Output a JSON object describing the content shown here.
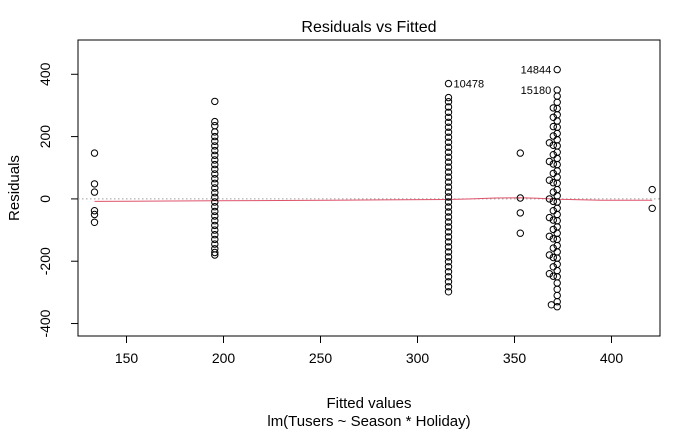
{
  "chart_data": {
    "type": "scatter",
    "title": "Residuals vs Fitted",
    "xlabel": "Fitted values",
    "subtitle": "lm(Tusers ~ Season * Holiday)",
    "ylabel": "Residuals",
    "xlim": [
      125,
      425
    ],
    "ylim": [
      -440,
      510
    ],
    "x_ticks": [
      150,
      200,
      250,
      300,
      350,
      400
    ],
    "y_ticks": [
      -400,
      -200,
      0,
      200,
      400
    ],
    "grid": false,
    "reference_line": 0,
    "colors": {
      "points": "#000000",
      "smooth": "#DF536B",
      "reference": "#9e9e9e",
      "frame": "#000000"
    },
    "points": [
      {
        "x": 133.5,
        "y": 147
      },
      {
        "x": 133.5,
        "y": 48
      },
      {
        "x": 133.5,
        "y": 22
      },
      {
        "x": 133.5,
        "y": -38
      },
      {
        "x": 133.5,
        "y": -50
      },
      {
        "x": 133.5,
        "y": -75
      },
      {
        "x": 195.5,
        "y": 313
      },
      {
        "x": 195.5,
        "y": 248
      },
      {
        "x": 195.5,
        "y": 235
      },
      {
        "x": 195.5,
        "y": 215
      },
      {
        "x": 195.5,
        "y": 200
      },
      {
        "x": 195.5,
        "y": 185
      },
      {
        "x": 195.5,
        "y": 170
      },
      {
        "x": 195.5,
        "y": 155
      },
      {
        "x": 195.5,
        "y": 140
      },
      {
        "x": 195.5,
        "y": 125
      },
      {
        "x": 195.5,
        "y": 110
      },
      {
        "x": 195.5,
        "y": 95
      },
      {
        "x": 195.5,
        "y": 80
      },
      {
        "x": 195.5,
        "y": 65
      },
      {
        "x": 195.5,
        "y": 50
      },
      {
        "x": 195.5,
        "y": 35
      },
      {
        "x": 195.5,
        "y": 20
      },
      {
        "x": 195.5,
        "y": 5
      },
      {
        "x": 195.5,
        "y": -10
      },
      {
        "x": 195.5,
        "y": -25
      },
      {
        "x": 195.5,
        "y": -40
      },
      {
        "x": 195.5,
        "y": -55
      },
      {
        "x": 195.5,
        "y": -70
      },
      {
        "x": 195.5,
        "y": -85
      },
      {
        "x": 195.5,
        "y": -100
      },
      {
        "x": 195.5,
        "y": -115
      },
      {
        "x": 195.5,
        "y": -130
      },
      {
        "x": 195.5,
        "y": -145
      },
      {
        "x": 195.5,
        "y": -160
      },
      {
        "x": 195.5,
        "y": -172
      },
      {
        "x": 195.5,
        "y": -180
      },
      {
        "x": 316,
        "y": 370,
        "label": "10478"
      },
      {
        "x": 316,
        "y": 325
      },
      {
        "x": 316,
        "y": 312
      },
      {
        "x": 316,
        "y": 295
      },
      {
        "x": 316,
        "y": 278
      },
      {
        "x": 316,
        "y": 262
      },
      {
        "x": 316,
        "y": 246
      },
      {
        "x": 316,
        "y": 230
      },
      {
        "x": 316,
        "y": 214
      },
      {
        "x": 316,
        "y": 198
      },
      {
        "x": 316,
        "y": 182
      },
      {
        "x": 316,
        "y": 166
      },
      {
        "x": 316,
        "y": 150
      },
      {
        "x": 316,
        "y": 134
      },
      {
        "x": 316,
        "y": 118
      },
      {
        "x": 316,
        "y": 102
      },
      {
        "x": 316,
        "y": 86
      },
      {
        "x": 316,
        "y": 70
      },
      {
        "x": 316,
        "y": 54
      },
      {
        "x": 316,
        "y": 38
      },
      {
        "x": 316,
        "y": 22
      },
      {
        "x": 316,
        "y": 6
      },
      {
        "x": 316,
        "y": -10
      },
      {
        "x": 316,
        "y": -26
      },
      {
        "x": 316,
        "y": -42
      },
      {
        "x": 316,
        "y": -58
      },
      {
        "x": 316,
        "y": -74
      },
      {
        "x": 316,
        "y": -90
      },
      {
        "x": 316,
        "y": -106
      },
      {
        "x": 316,
        "y": -122
      },
      {
        "x": 316,
        "y": -138
      },
      {
        "x": 316,
        "y": -154
      },
      {
        "x": 316,
        "y": -170
      },
      {
        "x": 316,
        "y": -186
      },
      {
        "x": 316,
        "y": -202
      },
      {
        "x": 316,
        "y": -218
      },
      {
        "x": 316,
        "y": -234
      },
      {
        "x": 316,
        "y": -250
      },
      {
        "x": 316,
        "y": -266
      },
      {
        "x": 316,
        "y": -282
      },
      {
        "x": 316,
        "y": -298
      },
      {
        "x": 353,
        "y": 147
      },
      {
        "x": 353,
        "y": 3
      },
      {
        "x": 353,
        "y": -45
      },
      {
        "x": 353,
        "y": -110
      },
      {
        "x": 372,
        "y": 415,
        "label": "14844"
      },
      {
        "x": 372,
        "y": 350,
        "label": "15180"
      },
      {
        "x": 372,
        "y": 330
      },
      {
        "x": 372,
        "y": 310
      },
      {
        "x": 372,
        "y": 290
      },
      {
        "x": 372,
        "y": 270
      },
      {
        "x": 372,
        "y": 250
      },
      {
        "x": 372,
        "y": 230
      },
      {
        "x": 372,
        "y": 210
      },
      {
        "x": 372,
        "y": 190
      },
      {
        "x": 372,
        "y": 170
      },
      {
        "x": 372,
        "y": 150
      },
      {
        "x": 372,
        "y": 130
      },
      {
        "x": 372,
        "y": 110
      },
      {
        "x": 372,
        "y": 90
      },
      {
        "x": 372,
        "y": 70
      },
      {
        "x": 372,
        "y": 50
      },
      {
        "x": 372,
        "y": 30
      },
      {
        "x": 372,
        "y": 10
      },
      {
        "x": 372,
        "y": -10
      },
      {
        "x": 372,
        "y": -30
      },
      {
        "x": 372,
        "y": -50
      },
      {
        "x": 372,
        "y": -70
      },
      {
        "x": 372,
        "y": -90
      },
      {
        "x": 372,
        "y": -110
      },
      {
        "x": 372,
        "y": -130
      },
      {
        "x": 372,
        "y": -150
      },
      {
        "x": 372,
        "y": -170
      },
      {
        "x": 372,
        "y": -190
      },
      {
        "x": 372,
        "y": -210
      },
      {
        "x": 372,
        "y": -230
      },
      {
        "x": 372,
        "y": -250
      },
      {
        "x": 372,
        "y": -270
      },
      {
        "x": 372,
        "y": -290
      },
      {
        "x": 372,
        "y": -310
      },
      {
        "x": 372,
        "y": -330
      },
      {
        "x": 372,
        "y": -346
      },
      {
        "x": 370,
        "y": 292
      },
      {
        "x": 370,
        "y": 262
      },
      {
        "x": 370,
        "y": 232
      },
      {
        "x": 370,
        "y": 202
      },
      {
        "x": 370,
        "y": 172
      },
      {
        "x": 370,
        "y": 142
      },
      {
        "x": 370,
        "y": 112
      },
      {
        "x": 370,
        "y": 82
      },
      {
        "x": 370,
        "y": 52
      },
      {
        "x": 370,
        "y": 22
      },
      {
        "x": 370,
        "y": -8
      },
      {
        "x": 370,
        "y": -38
      },
      {
        "x": 370,
        "y": -68
      },
      {
        "x": 370,
        "y": -98
      },
      {
        "x": 370,
        "y": -128
      },
      {
        "x": 370,
        "y": -158
      },
      {
        "x": 370,
        "y": -188
      },
      {
        "x": 370,
        "y": -218
      },
      {
        "x": 370,
        "y": -248
      },
      {
        "x": 369,
        "y": -340
      },
      {
        "x": 368,
        "y": 180
      },
      {
        "x": 368,
        "y": 120
      },
      {
        "x": 368,
        "y": 60
      },
      {
        "x": 368,
        "y": 0
      },
      {
        "x": 368,
        "y": -60
      },
      {
        "x": 368,
        "y": -120
      },
      {
        "x": 368,
        "y": -180
      },
      {
        "x": 368,
        "y": -240
      },
      {
        "x": 421,
        "y": 30
      },
      {
        "x": 421,
        "y": -30
      }
    ],
    "smooth_line": [
      {
        "x": 133.5,
        "y": -8
      },
      {
        "x": 195.5,
        "y": -6
      },
      {
        "x": 255,
        "y": -4
      },
      {
        "x": 316,
        "y": -2
      },
      {
        "x": 328,
        "y": 0
      },
      {
        "x": 340,
        "y": 3
      },
      {
        "x": 353,
        "y": 4
      },
      {
        "x": 362,
        "y": 2
      },
      {
        "x": 372,
        "y": -1
      },
      {
        "x": 395,
        "y": -4
      },
      {
        "x": 421,
        "y": -4
      }
    ]
  }
}
